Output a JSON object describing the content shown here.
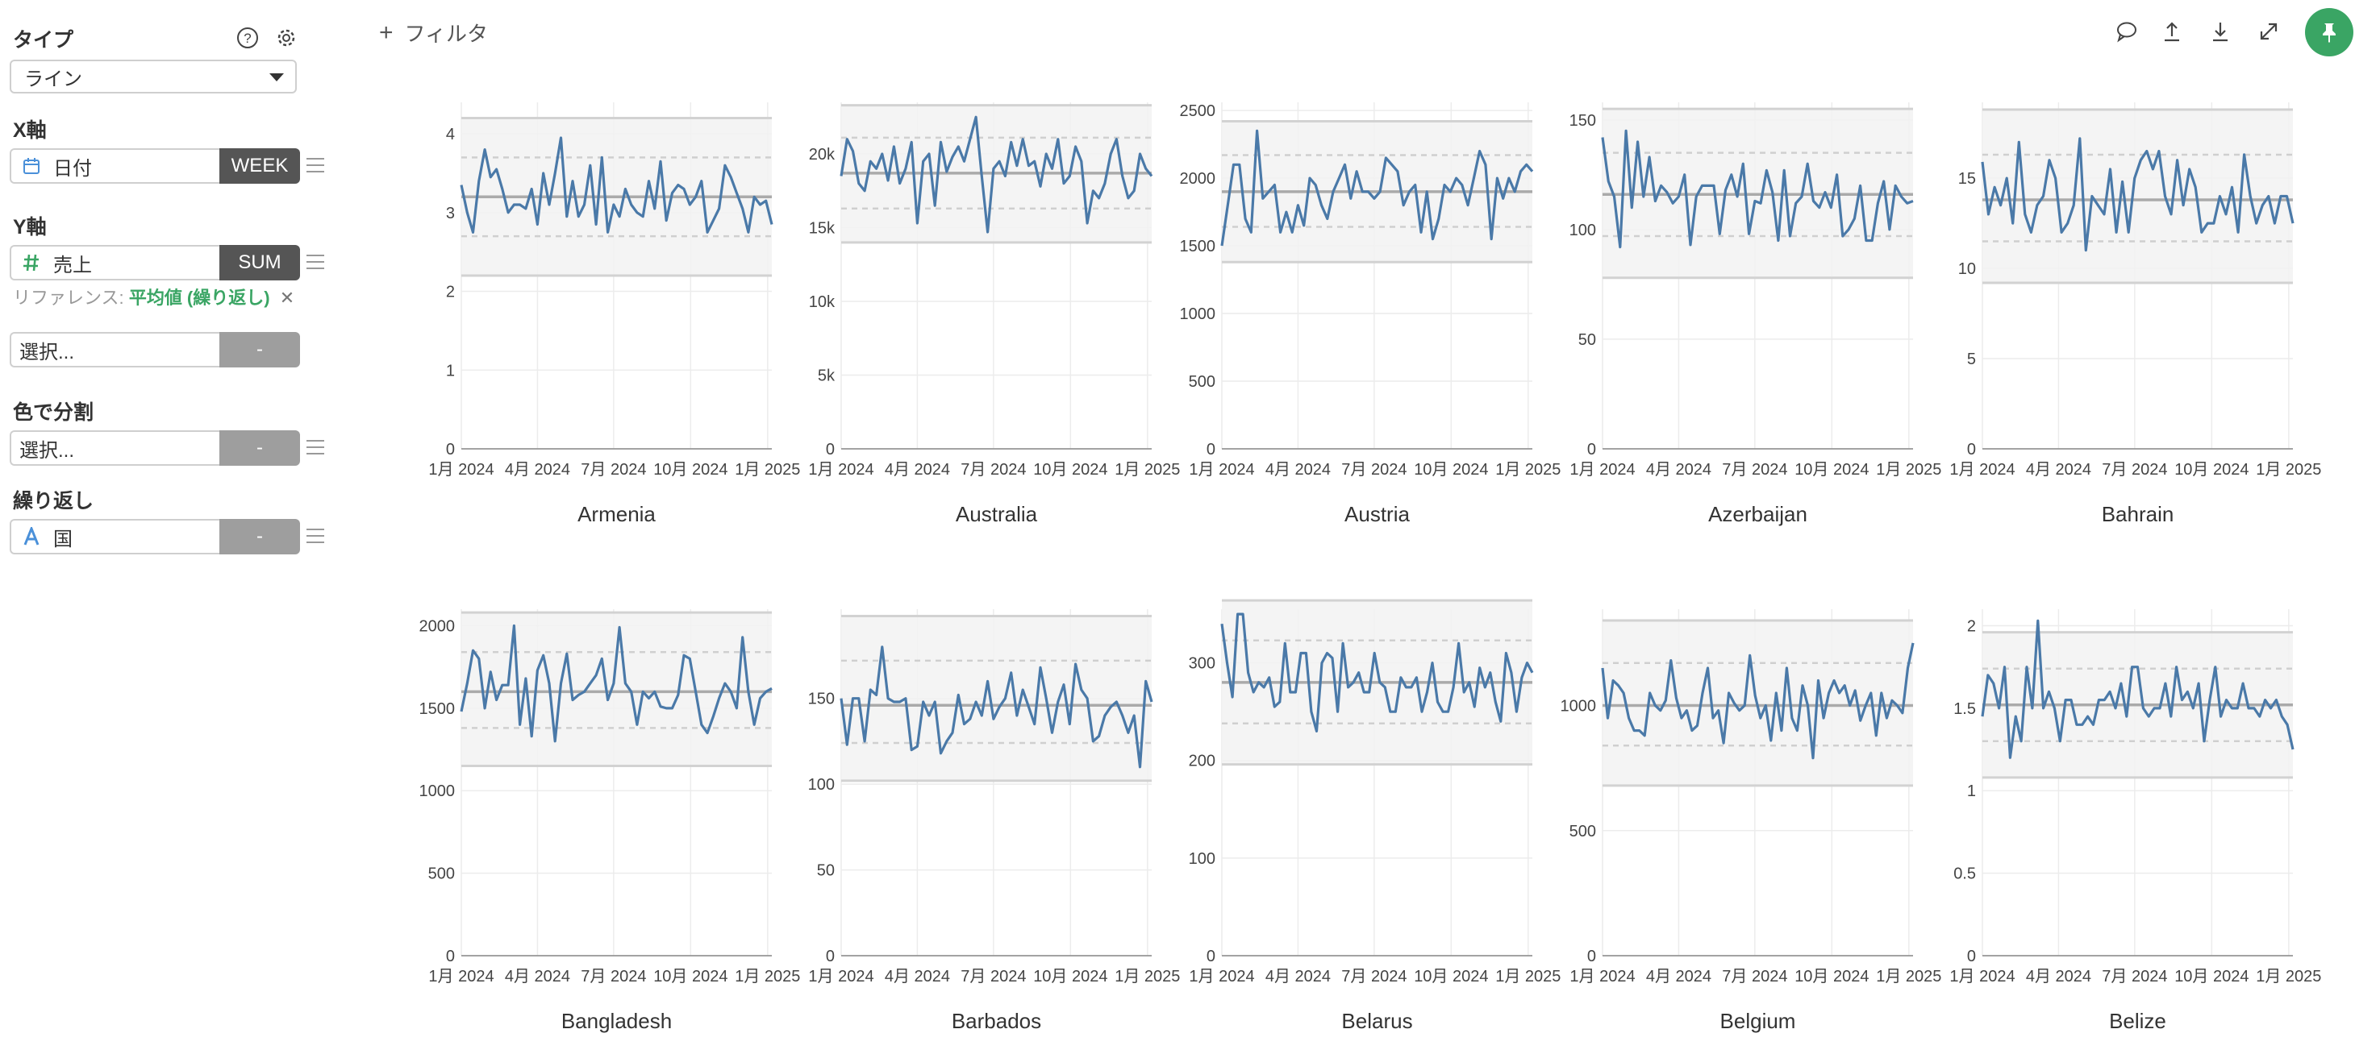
{
  "sidebar": {
    "type_heading": "タイプ",
    "type_value": "ライン",
    "x_heading": "X軸",
    "x_field": "日付",
    "x_agg": "WEEK",
    "y_heading": "Y軸",
    "y_field": "売上",
    "y_agg": "SUM",
    "reference_label": "リファレンス:",
    "reference_value": "平均値 (繰り返し)",
    "reference_remove": "✕",
    "extra_placeholder": "選択...",
    "extra_agg": "-",
    "color_heading": "色で分割",
    "color_placeholder": "選択...",
    "color_agg": "-",
    "repeat_heading": "繰り返し",
    "repeat_field": "国",
    "repeat_agg": "-"
  },
  "toolbar": {
    "filter_label": "フィルタ"
  },
  "icons": {
    "help": "help-icon",
    "settings": "gear-icon",
    "calendar": "calendar-icon",
    "hash": "hash-icon",
    "text": "text-type-icon",
    "comment": "comment-icon",
    "upload": "upload-icon",
    "download": "download-icon",
    "expand": "expand-icon",
    "pin": "pin-icon"
  },
  "colors": {
    "line": "#4a79a8",
    "accent": "#3aa564",
    "band": "#f2f2f2",
    "mean": "#aaaaaa"
  },
  "chart_data": [
    {
      "type": "line",
      "title": "Armenia",
      "xlabel": "",
      "ylabel": "",
      "xlim": [
        "2024-01-01",
        "2025-01-06"
      ],
      "ylim": [
        0,
        4.4
      ],
      "yticks": [
        0,
        1,
        2,
        3,
        4
      ],
      "ytick_labels": [
        "0",
        "1",
        "2",
        "3",
        "4"
      ],
      "xticks": [
        "2024-01-01",
        "2024-04-01",
        "2024-07-01",
        "2024-10-01",
        "2025-01-01"
      ],
      "xtick_labels": [
        "1月 2024",
        "4月 2024",
        "7月 2024",
        "10月 2024",
        "1月 2025"
      ],
      "mean": 3.2,
      "sd_band": [
        2.7,
        3.7
      ],
      "ref_band": [
        2.2,
        4.2
      ],
      "values": [
        3.35,
        3.0,
        2.75,
        3.4,
        3.8,
        3.45,
        3.55,
        3.3,
        3.0,
        3.1,
        3.1,
        3.05,
        3.3,
        2.85,
        3.5,
        3.1,
        3.5,
        3.95,
        2.95,
        3.4,
        2.95,
        3.1,
        3.6,
        2.85,
        3.7,
        2.75,
        3.1,
        2.95,
        3.3,
        3.1,
        3.0,
        2.95,
        3.4,
        3.05,
        3.65,
        2.9,
        3.25,
        3.35,
        3.3,
        3.1,
        3.2,
        3.4,
        2.75,
        2.9,
        3.05,
        3.6,
        3.45,
        3.25,
        3.05,
        2.75,
        3.2,
        3.1,
        3.15,
        2.85
      ]
    },
    {
      "type": "line",
      "title": "Australia",
      "xlabel": "",
      "ylabel": "",
      "xlim": [
        "2024-01-01",
        "2025-01-06"
      ],
      "ylim": [
        0,
        23500
      ],
      "yticks": [
        0,
        5000,
        10000,
        15000,
        20000
      ],
      "ytick_labels": [
        "0",
        "5k",
        "10k",
        "15k",
        "20k"
      ],
      "xticks": [
        "2024-01-01",
        "2024-04-01",
        "2024-07-01",
        "2024-10-01",
        "2025-01-01"
      ],
      "xtick_labels": [
        "1月 2024",
        "4月 2024",
        "7月 2024",
        "10月 2024",
        "1月 2025"
      ],
      "mean": 18700,
      "sd_band": [
        16300,
        21100
      ],
      "ref_band": [
        14000,
        23300
      ],
      "values": [
        18500,
        21000,
        20200,
        18000,
        17500,
        19500,
        19000,
        20000,
        18200,
        20500,
        18000,
        19000,
        20800,
        15300,
        19500,
        20000,
        16500,
        20800,
        18800,
        19800,
        20500,
        19500,
        21000,
        22500,
        18500,
        14700,
        19000,
        19500,
        18500,
        20800,
        19200,
        21000,
        19200,
        19500,
        17800,
        20000,
        19000,
        21000,
        18000,
        18500,
        20500,
        19500,
        15300,
        17500,
        17000,
        18000,
        20000,
        21000,
        18500,
        17000,
        17500,
        20000,
        19000,
        18500
      ]
    },
    {
      "type": "line",
      "title": "Austria",
      "xlabel": "",
      "ylabel": "",
      "xlim": [
        "2024-01-01",
        "2025-01-06"
      ],
      "ylim": [
        0,
        2560
      ],
      "yticks": [
        0,
        500,
        1000,
        1500,
        2000,
        2500
      ],
      "ytick_labels": [
        "0",
        "500",
        "1000",
        "1500",
        "2000",
        "2500"
      ],
      "xticks": [
        "2024-01-01",
        "2024-04-01",
        "2024-07-01",
        "2024-10-01",
        "2025-01-01"
      ],
      "xtick_labels": [
        "1月 2024",
        "4月 2024",
        "7月 2024",
        "10月 2024",
        "1月 2025"
      ],
      "mean": 1900,
      "sd_band": [
        1640,
        2170
      ],
      "ref_band": [
        1380,
        2420
      ],
      "values": [
        1500,
        1800,
        2100,
        2100,
        1700,
        1600,
        2350,
        1850,
        1900,
        1950,
        1600,
        1750,
        1600,
        1800,
        1650,
        2000,
        1950,
        1800,
        1700,
        1900,
        2000,
        2100,
        1850,
        2050,
        1900,
        1900,
        1850,
        1900,
        2150,
        2100,
        2050,
        1800,
        1900,
        1950,
        1600,
        1900,
        1550,
        1700,
        1950,
        1900,
        2000,
        1950,
        1800,
        2000,
        2200,
        2100,
        1550,
        2000,
        1850,
        2000,
        1900,
        2050,
        2100,
        2050
      ]
    },
    {
      "type": "line",
      "title": "Azerbaijan",
      "xlabel": "",
      "ylabel": "",
      "xlim": [
        "2024-01-01",
        "2025-01-06"
      ],
      "ylim": [
        0,
        158
      ],
      "yticks": [
        0,
        50,
        100,
        150
      ],
      "ytick_labels": [
        "0",
        "50",
        "100",
        "150"
      ],
      "xticks": [
        "2024-01-01",
        "2024-04-01",
        "2024-07-01",
        "2024-10-01",
        "2025-01-01"
      ],
      "xtick_labels": [
        "1月 2024",
        "4月 2024",
        "7月 2024",
        "10月 2024",
        "1月 2025"
      ],
      "mean": 116,
      "sd_band": [
        97,
        135
      ],
      "ref_band": [
        78,
        155
      ],
      "values": [
        142,
        122,
        115,
        92,
        145,
        110,
        140,
        115,
        133,
        113,
        120,
        117,
        112,
        115,
        125,
        93,
        115,
        120,
        120,
        120,
        98,
        118,
        125,
        115,
        130,
        98,
        113,
        112,
        127,
        117,
        95,
        127,
        97,
        112,
        115,
        130,
        113,
        110,
        117,
        110,
        125,
        97,
        100,
        105,
        120,
        95,
        95,
        112,
        122,
        100,
        120,
        115,
        112,
        113
      ]
    },
    {
      "type": "line",
      "title": "Bahrain",
      "xlabel": "",
      "ylabel": "",
      "xlim": [
        "2024-01-01",
        "2025-01-06"
      ],
      "ylim": [
        0,
        19.2
      ],
      "yticks": [
        0,
        5,
        10,
        15
      ],
      "ytick_labels": [
        "0",
        "5",
        "10",
        "15"
      ],
      "xticks": [
        "2024-01-01",
        "2024-04-01",
        "2024-07-01",
        "2024-10-01",
        "2025-01-01"
      ],
      "xtick_labels": [
        "1月 2024",
        "4月 2024",
        "7月 2024",
        "10月 2024",
        "1月 2025"
      ],
      "mean": 13.8,
      "sd_band": [
        11.5,
        16.3
      ],
      "ref_band": [
        9.2,
        18.8
      ],
      "values": [
        15.9,
        13.0,
        14.5,
        13.5,
        15.0,
        12.5,
        17.0,
        13.0,
        12.0,
        13.5,
        14.0,
        16.0,
        15.0,
        12.0,
        12.5,
        13.5,
        17.2,
        11.0,
        14.0,
        13.5,
        13.0,
        15.5,
        12.0,
        14.8,
        12.0,
        15.0,
        16.0,
        16.5,
        15.5,
        16.5,
        14.0,
        13.0,
        16.0,
        13.5,
        15.5,
        14.5,
        12.0,
        12.5,
        12.5,
        14.0,
        13.0,
        14.5,
        12.0,
        16.3,
        14.0,
        12.5,
        13.5,
        14.0,
        12.5,
        14.0,
        14.0,
        12.5
      ]
    },
    {
      "type": "line",
      "title": "Bangladesh",
      "xlabel": "",
      "ylabel": "",
      "xlim": [
        "2024-01-01",
        "2025-01-06"
      ],
      "ylim": [
        0,
        2100
      ],
      "yticks": [
        0,
        500,
        1000,
        1500,
        2000
      ],
      "ytick_labels": [
        "0",
        "500",
        "1000",
        "1500",
        "2000"
      ],
      "xticks": [
        "2024-01-01",
        "2024-04-01",
        "2024-07-01",
        "2024-10-01",
        "2025-01-01"
      ],
      "xtick_labels": [
        "1月 2024",
        "4月 2024",
        "7月 2024",
        "10月 2024",
        "1月 2025"
      ],
      "mean": 1600,
      "sd_band": [
        1380,
        1840
      ],
      "ref_band": [
        1150,
        2080
      ],
      "values": [
        1480,
        1650,
        1850,
        1800,
        1500,
        1720,
        1550,
        1640,
        1640,
        2000,
        1400,
        1680,
        1330,
        1730,
        1820,
        1650,
        1300,
        1650,
        1830,
        1550,
        1580,
        1600,
        1650,
        1700,
        1800,
        1550,
        1650,
        1990,
        1650,
        1600,
        1400,
        1600,
        1560,
        1600,
        1510,
        1500,
        1500,
        1580,
        1820,
        1800,
        1600,
        1400,
        1350,
        1450,
        1560,
        1650,
        1600,
        1500,
        1930,
        1600,
        1400,
        1560,
        1600,
        1620
      ]
    },
    {
      "type": "line",
      "title": "Barbados",
      "xlabel": "",
      "ylabel": "",
      "xlim": [
        "2024-01-01",
        "2025-01-06"
      ],
      "ylim": [
        0,
        202
      ],
      "yticks": [
        0,
        50,
        100,
        150
      ],
      "ytick_labels": [
        "0",
        "50",
        "100",
        "150"
      ],
      "xticks": [
        "2024-01-01",
        "2024-04-01",
        "2024-07-01",
        "2024-10-01",
        "2025-01-01"
      ],
      "xtick_labels": [
        "1月 2024",
        "4月 2024",
        "7月 2024",
        "10月 2024",
        "1月 2025"
      ],
      "mean": 146,
      "sd_band": [
        124,
        172
      ],
      "ref_band": [
        102,
        198
      ],
      "values": [
        150,
        123,
        150,
        150,
        125,
        155,
        152,
        180,
        150,
        148,
        148,
        150,
        120,
        122,
        148,
        140,
        148,
        118,
        125,
        130,
        152,
        135,
        138,
        148,
        140,
        160,
        138,
        145,
        150,
        165,
        140,
        155,
        145,
        135,
        168,
        150,
        130,
        148,
        158,
        135,
        170,
        155,
        150,
        125,
        128,
        140,
        145,
        148,
        140,
        130,
        140,
        110,
        160,
        148
      ]
    },
    {
      "type": "line",
      "title": "Belarus",
      "xlabel": "",
      "ylabel": "",
      "xlim": [
        "2024-01-01",
        "2025-01-06"
      ],
      "ylim": [
        0,
        355
      ],
      "yticks": [
        0,
        100,
        200,
        300
      ],
      "ytick_labels": [
        "0",
        "100",
        "200",
        "300"
      ],
      "xticks": [
        "2024-01-01",
        "2024-04-01",
        "2024-07-01",
        "2024-10-01",
        "2025-01-01"
      ],
      "xtick_labels": [
        "1月 2024",
        "4月 2024",
        "7月 2024",
        "10月 2024",
        "1月 2025"
      ],
      "mean": 280,
      "sd_band": [
        238,
        323
      ],
      "ref_band": [
        196,
        364
      ],
      "values": [
        340,
        300,
        265,
        350,
        350,
        290,
        270,
        280,
        275,
        285,
        255,
        260,
        320,
        270,
        270,
        310,
        310,
        250,
        230,
        300,
        310,
        305,
        250,
        320,
        275,
        280,
        290,
        270,
        270,
        310,
        280,
        275,
        250,
        250,
        285,
        275,
        275,
        285,
        250,
        270,
        300,
        260,
        250,
        250,
        275,
        320,
        270,
        280,
        255,
        295,
        275,
        290,
        260,
        240,
        310,
        290,
        250,
        285,
        300,
        290
      ]
    },
    {
      "type": "line",
      "title": "Belgium",
      "xlabel": "",
      "ylabel": "",
      "xlim": [
        "2024-01-01",
        "2025-01-06"
      ],
      "ylim": [
        0,
        1385
      ],
      "yticks": [
        0,
        500,
        1000
      ],
      "ytick_labels": [
        "0",
        "500",
        "1000"
      ],
      "xticks": [
        "2024-01-01",
        "2024-04-01",
        "2024-07-01",
        "2024-10-01",
        "2025-01-01"
      ],
      "xtick_labels": [
        "1月 2024",
        "4月 2024",
        "7月 2024",
        "10月 2024",
        "1月 2025"
      ],
      "mean": 1000,
      "sd_band": [
        840,
        1170
      ],
      "ref_band": [
        680,
        1340
      ],
      "values": [
        1150,
        950,
        1100,
        1080,
        1050,
        950,
        900,
        900,
        880,
        1050,
        1000,
        980,
        1020,
        1180,
        1030,
        950,
        980,
        900,
        920,
        1050,
        1150,
        950,
        980,
        850,
        1050,
        1010,
        980,
        1000,
        1200,
        1040,
        950,
        1000,
        860,
        1050,
        900,
        1150,
        950,
        900,
        1080,
        1000,
        790,
        1100,
        950,
        1050,
        1100,
        1050,
        1080,
        1000,
        1060,
        940,
        1000,
        1050,
        880,
        1050,
        950,
        1020,
        1000,
        970,
        1150,
        1250
      ]
    },
    {
      "type": "line",
      "title": "Belize",
      "xlabel": "",
      "ylabel": "",
      "xlim": [
        "2024-01-01",
        "2025-01-06"
      ],
      "ylim": [
        0,
        2.1
      ],
      "yticks": [
        0,
        0.5,
        1,
        1.5,
        2
      ],
      "ytick_labels": [
        "0",
        "0.5",
        "1",
        "1.5",
        "2"
      ],
      "xticks": [
        "2024-01-01",
        "2024-04-01",
        "2024-07-01",
        "2024-10-01",
        "2025-01-01"
      ],
      "xtick_labels": [
        "1月 2024",
        "4月 2024",
        "7月 2024",
        "10月 2024",
        "1月 2025"
      ],
      "mean": 1.52,
      "sd_band": [
        1.3,
        1.74
      ],
      "ref_band": [
        1.08,
        1.96
      ],
      "values": [
        1.45,
        1.7,
        1.65,
        1.5,
        1.75,
        1.2,
        1.45,
        1.3,
        1.75,
        1.5,
        2.03,
        1.5,
        1.6,
        1.5,
        1.3,
        1.55,
        1.55,
        1.4,
        1.4,
        1.45,
        1.4,
        1.55,
        1.55,
        1.6,
        1.5,
        1.65,
        1.45,
        1.75,
        1.75,
        1.5,
        1.45,
        1.5,
        1.5,
        1.65,
        1.45,
        1.75,
        1.55,
        1.6,
        1.5,
        1.65,
        1.3,
        1.55,
        1.75,
        1.45,
        1.55,
        1.5,
        1.5,
        1.65,
        1.5,
        1.5,
        1.45,
        1.55,
        1.5,
        1.55,
        1.45,
        1.4,
        1.25
      ]
    }
  ]
}
